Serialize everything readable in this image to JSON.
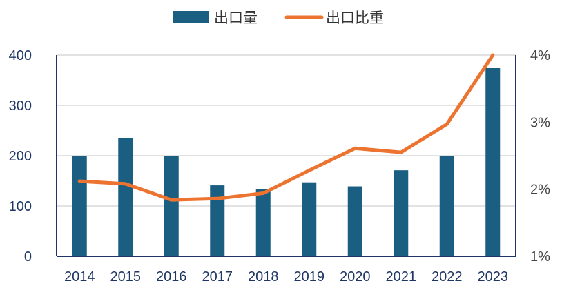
{
  "chart_data": {
    "type": "bar",
    "categories": [
      "2014",
      "2015",
      "2016",
      "2017",
      "2018",
      "2019",
      "2020",
      "2021",
      "2022",
      "2023"
    ],
    "series": [
      {
        "name": "出口量",
        "type": "bar",
        "axis": "left",
        "color": "#1a5f82",
        "values": [
          199,
          235,
          199,
          141,
          134,
          147,
          139,
          171,
          200,
          375
        ]
      },
      {
        "name": "出口比重",
        "type": "line",
        "axis": "right",
        "color": "#ec7330",
        "values": [
          2.12,
          2.08,
          1.84,
          1.86,
          1.94,
          2.28,
          2.61,
          2.55,
          2.97,
          4.0
        ]
      }
    ],
    "y_left": {
      "ylim": [
        0,
        400
      ],
      "ticks": [
        0,
        100,
        200,
        300,
        400
      ],
      "tick_labels": [
        "0",
        "100",
        "200",
        "300",
        "400"
      ]
    },
    "y_right": {
      "ylim": [
        1,
        4
      ],
      "ticks": [
        1,
        2,
        3,
        4
      ],
      "tick_labels": [
        "1%",
        "2%",
        "3%",
        "4%"
      ]
    },
    "title": "",
    "xlabel": "",
    "ylabel": "",
    "grid": true,
    "gridline_color": "#d9d9d9",
    "axis_color": "#1f3564",
    "legend": {
      "position": "top-center",
      "entries": [
        "出口量",
        "出口比重"
      ]
    }
  }
}
